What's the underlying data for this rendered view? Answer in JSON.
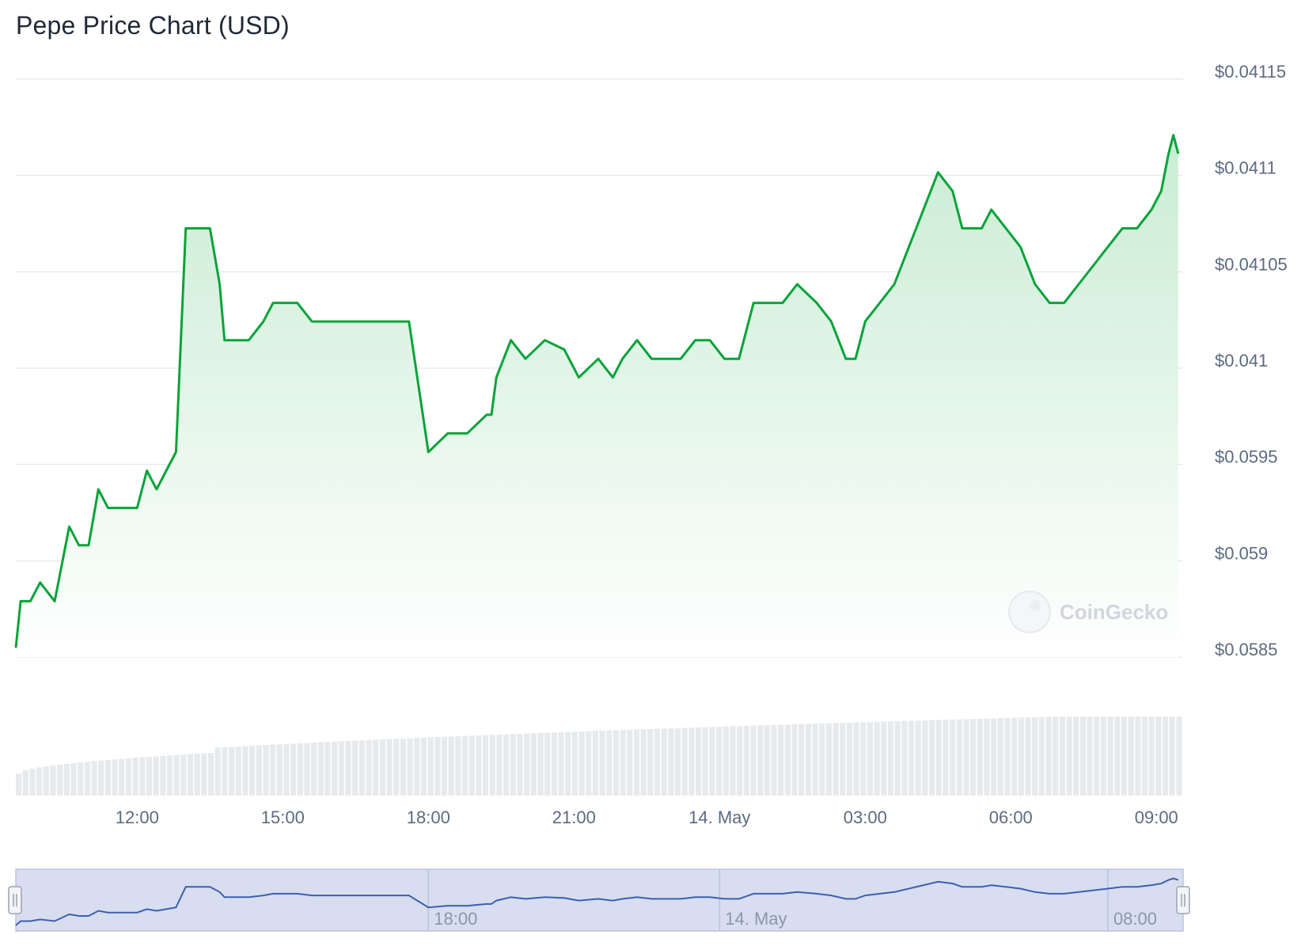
{
  "title": "Pepe Price Chart (USD)",
  "watermark": "CoinGecko",
  "colors": {
    "line": "#0aa33a",
    "area_top": "#c9ecd3",
    "area_bottom": "#ffffff",
    "grid": "#e8ebef",
    "volume": "#e7eaed",
    "navigator_bg": "#d8deef",
    "navigator_line": "#3d5fb0"
  },
  "chart_data": {
    "type": "area",
    "title": "Pepe Price Chart (USD)",
    "xlabel": "",
    "ylabel": "",
    "y_tick_labels": [
      "$0.04115",
      "$0.0411",
      "$0.04105",
      "$0.041",
      "$0.0595",
      "$0.059",
      "$0.0585"
    ],
    "ylim": [
      0.04084,
      0.04115
    ],
    "x_tick_labels": [
      "12:00",
      "15:00",
      "18:00",
      "21:00",
      "14. May",
      "03:00",
      "06:00",
      "09:00"
    ],
    "x_tick_hours": [
      12,
      15,
      18,
      21,
      24,
      27,
      30,
      33
    ],
    "xlim_hours": [
      9.5,
      33.55
    ],
    "grid": true,
    "legend": "none",
    "series": [
      {
        "x": [
          9.5,
          9.6,
          9.8,
          10.0,
          10.3,
          10.6,
          10.8,
          11.0,
          11.2,
          11.4,
          11.6,
          11.8,
          12.0,
          12.2,
          12.4,
          12.6,
          12.8,
          13.0,
          13.2,
          13.4,
          13.5,
          13.7,
          13.8,
          14.0,
          14.3,
          14.6,
          14.8,
          15.0,
          15.3,
          15.6,
          16.0,
          16.2,
          16.5,
          16.8,
          17.0,
          17.3,
          17.6,
          18.0,
          18.4,
          18.8,
          19.2,
          19.3,
          19.4,
          19.7,
          20.0,
          20.4,
          20.8,
          21.1,
          21.5,
          21.8,
          22.0,
          22.3,
          22.6,
          22.9,
          23.2,
          23.5,
          23.8,
          24.1,
          24.4,
          24.7,
          25.0,
          25.3,
          25.6,
          26.0,
          26.3,
          26.6,
          26.8,
          27.0,
          27.3,
          27.6,
          27.9,
          28.2,
          28.5,
          28.8,
          29.0,
          29.2,
          29.4,
          29.6,
          29.9,
          30.2,
          30.5,
          30.8,
          31.1,
          31.4,
          31.7,
          32.0,
          32.3,
          32.6,
          32.9,
          33.1,
          33.25,
          33.35,
          33.45
        ],
        "y": [
          0.040845,
          0.04087,
          0.04087,
          0.04088,
          0.04087,
          0.04091,
          0.0409,
          0.0409,
          0.04093,
          0.04092,
          0.04092,
          0.04092,
          0.04092,
          0.04094,
          0.04093,
          0.04094,
          0.04095,
          0.04107,
          0.04107,
          0.04107,
          0.04107,
          0.04104,
          0.04101,
          0.04101,
          0.04101,
          0.04102,
          0.04103,
          0.04103,
          0.04103,
          0.04102,
          0.04102,
          0.04102,
          0.04102,
          0.04102,
          0.04102,
          0.04102,
          0.04102,
          0.04095,
          0.04096,
          0.04096,
          0.04097,
          0.04097,
          0.04099,
          0.04101,
          0.041,
          0.04101,
          0.041005,
          0.04099,
          0.041,
          0.04099,
          0.041,
          0.04101,
          0.041,
          0.041,
          0.041,
          0.04101,
          0.04101,
          0.041,
          0.041,
          0.04103,
          0.04103,
          0.04103,
          0.04104,
          0.04103,
          0.04102,
          0.041,
          0.041,
          0.04102,
          0.04103,
          0.04104,
          0.04106,
          0.04108,
          0.0411,
          0.04109,
          0.04107,
          0.04107,
          0.04107,
          0.04108,
          0.04107,
          0.04106,
          0.04104,
          0.04103,
          0.04103,
          0.04104,
          0.04105,
          0.04106,
          0.04107,
          0.04107,
          0.04108,
          0.04109,
          0.04111,
          0.04112,
          0.04111
        ]
      }
    ]
  },
  "navigator": {
    "tick_labels": [
      "18:00",
      "14. May",
      "08:00"
    ]
  }
}
